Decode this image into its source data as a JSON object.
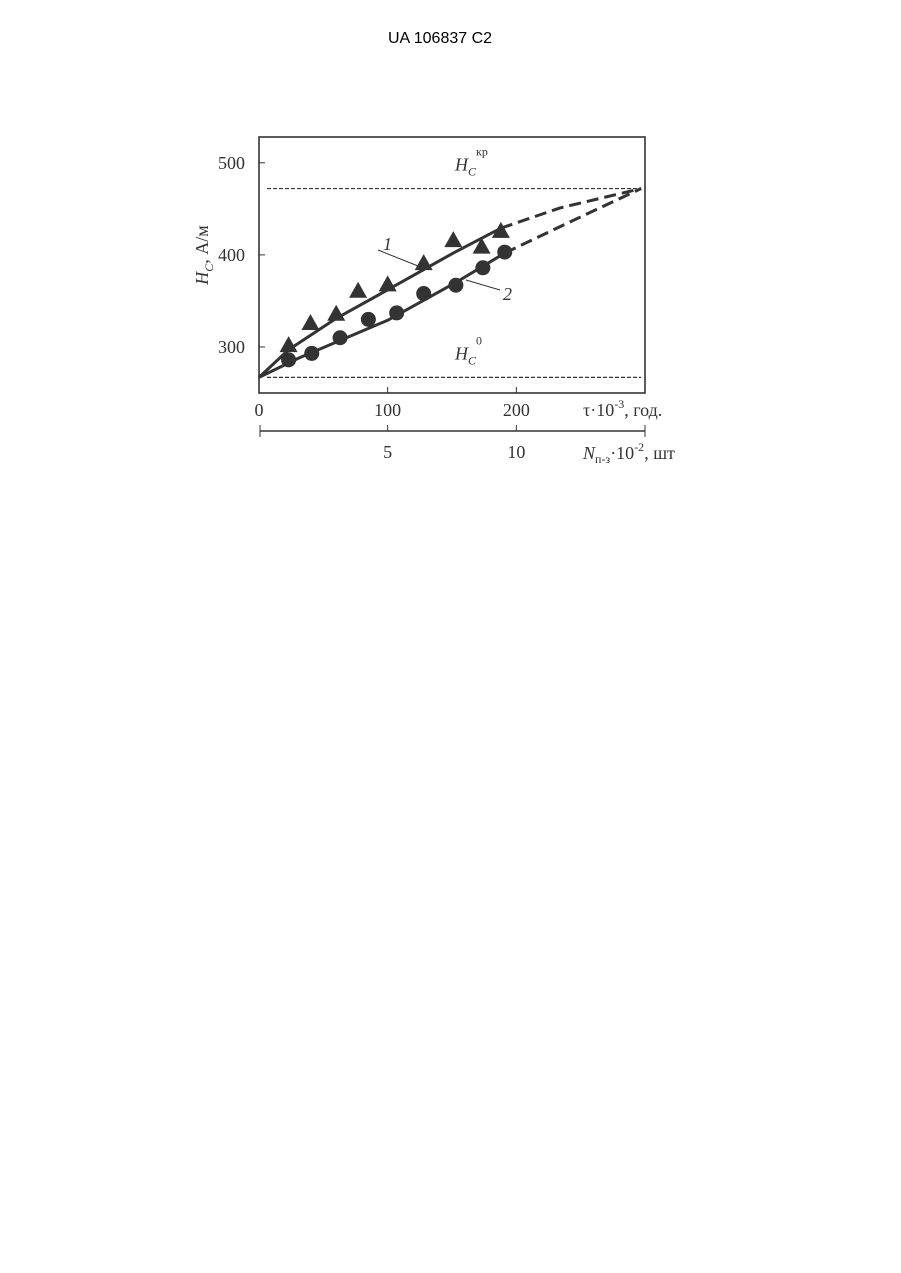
{
  "header": "UA 106837 C2",
  "chart_data": {
    "type": "scatter",
    "xlim": [
      0,
      300
    ],
    "xticks": [
      0,
      100,
      200
    ],
    "ylim": [
      250,
      528
    ],
    "yticks": [
      300,
      400,
      500
    ],
    "x2lim": [
      0,
      15
    ],
    "x2ticks": [
      5,
      10
    ],
    "y_label": {
      "main": "H",
      "sub": "C",
      "rest": ", А/м"
    },
    "x_label": {
      "main": "τ·10",
      "sup": "-3",
      "rest": ", год."
    },
    "x2_label": {
      "main": "N",
      "sub": "п-з",
      "mid": "·10",
      "sup": "-2",
      "rest": ", шт"
    },
    "reference_lines": [
      {
        "value": 472,
        "main": "H",
        "sub": "C",
        "sup": "кр"
      },
      {
        "value": 267,
        "main": "H",
        "sub": "C",
        "sup": "0"
      }
    ],
    "series": [
      {
        "name": "1",
        "marker": "triangle",
        "color": "#333",
        "x": [
          23,
          40,
          60,
          77,
          100,
          128,
          151,
          173,
          188
        ],
        "values": [
          302,
          326,
          336,
          361,
          368,
          391,
          416,
          409,
          426
        ],
        "fit_x": [
          0,
          23,
          60,
          100,
          151,
          188,
          234,
          297
        ],
        "fit_values": [
          267,
          297,
          331,
          362,
          402,
          429,
          451,
          472
        ],
        "dashed_from": 188
      },
      {
        "name": "2",
        "marker": "circle",
        "color": "#333",
        "x": [
          23,
          41,
          63,
          85,
          107,
          128,
          153,
          174,
          191
        ],
        "values": [
          286,
          293,
          310,
          330,
          337,
          358,
          367,
          386,
          403
        ],
        "fit_x": [
          0,
          31,
          100,
          153,
          191,
          242,
          297
        ],
        "fit_values": [
          267,
          288,
          329,
          370,
          402,
          436,
          472
        ],
        "dashed_from": 191
      }
    ]
  }
}
